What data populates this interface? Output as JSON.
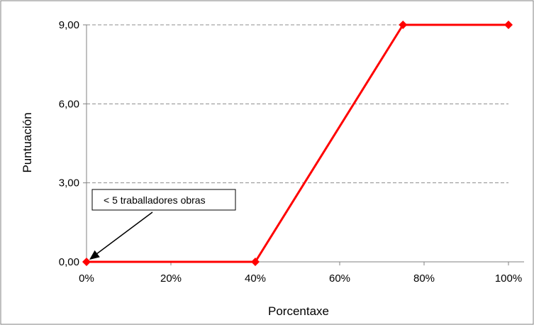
{
  "chart_data": {
    "type": "line",
    "title": "",
    "xlabel": "Porcentaxe",
    "ylabel": "Puntuación",
    "x_ticks": [
      {
        "value": 0,
        "label": "0%"
      },
      {
        "value": 20,
        "label": "20%"
      },
      {
        "value": 40,
        "label": "40%"
      },
      {
        "value": 60,
        "label": "60%"
      },
      {
        "value": 80,
        "label": "80%"
      },
      {
        "value": 100,
        "label": "100%"
      }
    ],
    "y_ticks": [
      {
        "value": 0,
        "label": "0,00"
      },
      {
        "value": 3,
        "label": "3,00"
      },
      {
        "value": 6,
        "label": "6,00"
      },
      {
        "value": 9,
        "label": "9,00"
      }
    ],
    "xlim": [
      0,
      100
    ],
    "ylim": [
      0,
      9
    ],
    "grid": "horizontal dashed",
    "legend": "none",
    "series": [
      {
        "color": "#ff0000",
        "marker": "diamond",
        "points": [
          {
            "x": 0,
            "y": 0
          },
          {
            "x": 40,
            "y": 0
          },
          {
            "x": 75,
            "y": 9
          },
          {
            "x": 100,
            "y": 9
          }
        ]
      }
    ],
    "annotations": [
      {
        "text": "< 5 traballadores obras",
        "target": {
          "x": 0,
          "y": 0
        }
      }
    ]
  }
}
